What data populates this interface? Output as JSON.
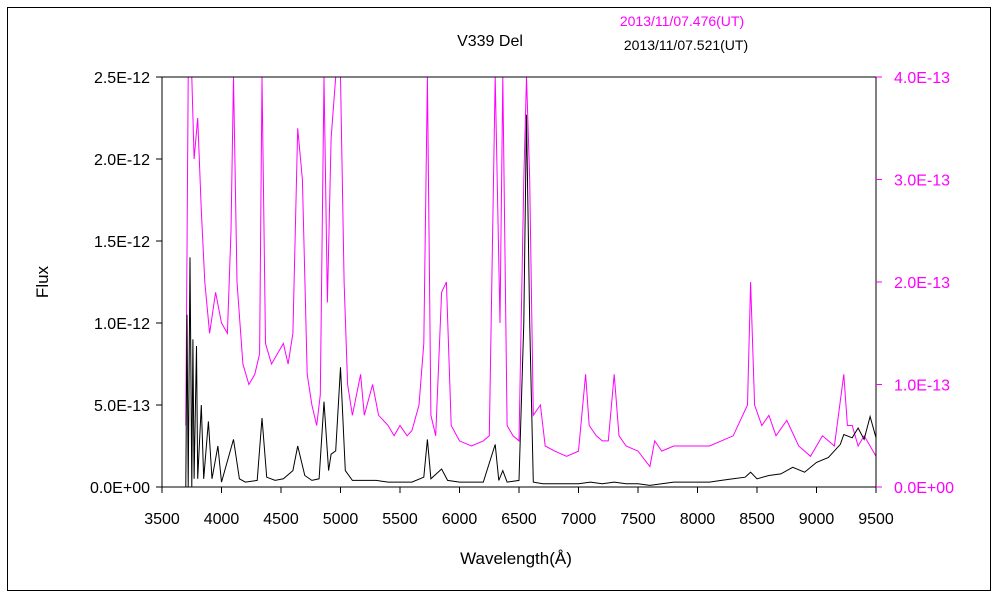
{
  "chart_data": {
    "type": "line",
    "title": "V339 Del",
    "xlabel": "Wavelength(Å)",
    "ylabel": "Flux",
    "xlim": [
      3500,
      9500
    ],
    "ylim_left": [
      0,
      2.5e-12
    ],
    "ylim_right": [
      0,
      4e-13
    ],
    "x_ticks": [
      "3500",
      "4000",
      "4500",
      "5000",
      "5500",
      "6000",
      "6500",
      "7000",
      "7500",
      "8000",
      "8500",
      "9000",
      "9500"
    ],
    "y_left_ticks": [
      "0.0E+00",
      "5.0E-13",
      "1.0E-12",
      "1.5E-12",
      "2.0E-12",
      "2.5E-12"
    ],
    "y_right_ticks": [
      "0.0E+00",
      "1.0E-13",
      "2.0E-13",
      "3.0E-13",
      "4.0E-13"
    ],
    "grid": false,
    "legend_position": "top-right",
    "colors": {
      "magenta": "#ff00ff",
      "black": "#000000"
    },
    "series": [
      {
        "name": "2013/11/07.476(UT)",
        "axis": "right",
        "color": "#ff00ff",
        "points": [
          [
            3700,
            6e-14
          ],
          [
            3720,
            4e-13
          ],
          [
            3750,
            4e-13
          ],
          [
            3770,
            3.2e-13
          ],
          [
            3800,
            3.6e-13
          ],
          [
            3830,
            2.7e-13
          ],
          [
            3860,
            2e-13
          ],
          [
            3900,
            1.5e-13
          ],
          [
            3950,
            1.9e-13
          ],
          [
            4000,
            1.6e-13
          ],
          [
            4050,
            1.5e-13
          ],
          [
            4080,
            2.5e-13
          ],
          [
            4101,
            4e-13
          ],
          [
            4130,
            2e-13
          ],
          [
            4180,
            1.2e-13
          ],
          [
            4230,
            1e-13
          ],
          [
            4280,
            1.1e-13
          ],
          [
            4320,
            1.3e-13
          ],
          [
            4340,
            4e-13
          ],
          [
            4370,
            1.4e-13
          ],
          [
            4420,
            1.2e-13
          ],
          [
            4470,
            1.3e-13
          ],
          [
            4520,
            1.4e-13
          ],
          [
            4560,
            1.2e-13
          ],
          [
            4600,
            1.5e-13
          ],
          [
            4640,
            3.5e-13
          ],
          [
            4680,
            3e-13
          ],
          [
            4720,
            1.1e-13
          ],
          [
            4760,
            8e-14
          ],
          [
            4800,
            6e-14
          ],
          [
            4830,
            9e-14
          ],
          [
            4861,
            4e-13
          ],
          [
            4890,
            1.8e-13
          ],
          [
            4921,
            3.4e-13
          ],
          [
            4960,
            4e-13
          ],
          [
            5000,
            4e-13
          ],
          [
            5030,
            2e-13
          ],
          [
            5060,
            1e-13
          ],
          [
            5100,
            7e-14
          ],
          [
            5169,
            1.1e-13
          ],
          [
            5200,
            7e-14
          ],
          [
            5270,
            1e-13
          ],
          [
            5320,
            7e-14
          ],
          [
            5400,
            6e-14
          ],
          [
            5450,
            5e-14
          ],
          [
            5500,
            6e-14
          ],
          [
            5560,
            5e-14
          ],
          [
            5600,
            5.5e-14
          ],
          [
            5660,
            8e-14
          ],
          [
            5700,
            1.4e-13
          ],
          [
            5730,
            4e-13
          ],
          [
            5760,
            7e-14
          ],
          [
            5800,
            5e-14
          ],
          [
            5850,
            1.9e-13
          ],
          [
            5890,
            2e-13
          ],
          [
            5930,
            6e-14
          ],
          [
            6000,
            4.5e-14
          ],
          [
            6100,
            4e-14
          ],
          [
            6200,
            4.5e-14
          ],
          [
            6250,
            5e-14
          ],
          [
            6300,
            4e-13
          ],
          [
            6340,
            1.6e-13
          ],
          [
            6364,
            4e-13
          ],
          [
            6400,
            6e-14
          ],
          [
            6450,
            5e-14
          ],
          [
            6500,
            4.5e-14
          ],
          [
            6540,
            3e-13
          ],
          [
            6563,
            4e-13
          ],
          [
            6590,
            3e-13
          ],
          [
            6620,
            7e-14
          ],
          [
            6680,
            8e-14
          ],
          [
            6720,
            4e-14
          ],
          [
            6800,
            3.5e-14
          ],
          [
            6900,
            3e-14
          ],
          [
            7000,
            3.5e-14
          ],
          [
            7060,
            1.1e-13
          ],
          [
            7090,
            6e-14
          ],
          [
            7150,
            5e-14
          ],
          [
            7200,
            4.5e-14
          ],
          [
            7250,
            4.5e-14
          ],
          [
            7300,
            1.1e-13
          ],
          [
            7340,
            5e-14
          ],
          [
            7400,
            4e-14
          ],
          [
            7500,
            3.5e-14
          ],
          [
            7600,
            2e-14
          ],
          [
            7640,
            4.5e-14
          ],
          [
            7700,
            3.5e-14
          ],
          [
            7800,
            4e-14
          ],
          [
            7900,
            4e-14
          ],
          [
            8000,
            4e-14
          ],
          [
            8100,
            4e-14
          ],
          [
            8200,
            4.5e-14
          ],
          [
            8300,
            5e-14
          ],
          [
            8360,
            6.5e-14
          ],
          [
            8420,
            8e-14
          ],
          [
            8446,
            2e-13
          ],
          [
            8480,
            8e-14
          ],
          [
            8540,
            6e-14
          ],
          [
            8600,
            7e-14
          ],
          [
            8660,
            5e-14
          ],
          [
            8750,
            6.5e-14
          ],
          [
            8850,
            4e-14
          ],
          [
            8950,
            3e-14
          ],
          [
            9050,
            5e-14
          ],
          [
            9150,
            4e-14
          ],
          [
            9229,
            1.1e-13
          ],
          [
            9260,
            6e-14
          ],
          [
            9300,
            6e-14
          ],
          [
            9350,
            4e-14
          ],
          [
            9400,
            5e-14
          ],
          [
            9450,
            4e-14
          ],
          [
            9500,
            3e-14
          ]
        ]
      },
      {
        "name": "2013/11/07.521(UT)",
        "axis": "left",
        "color": "#000000",
        "points": [
          [
            3700,
            0
          ],
          [
            3710,
            1.05e-12
          ],
          [
            3720,
            0
          ],
          [
            3735,
            1.4e-12
          ],
          [
            3750,
            0
          ],
          [
            3760,
            9e-13
          ],
          [
            3770,
            5e-14
          ],
          [
            3790,
            8.6e-13
          ],
          [
            3800,
            5e-14
          ],
          [
            3830,
            5e-13
          ],
          [
            3850,
            5e-14
          ],
          [
            3890,
            4e-13
          ],
          [
            3920,
            5e-14
          ],
          [
            3970,
            2.5e-13
          ],
          [
            4000,
            3e-14
          ],
          [
            4101,
            2.9e-13
          ],
          [
            4150,
            5e-14
          ],
          [
            4200,
            3e-14
          ],
          [
            4300,
            4e-14
          ],
          [
            4340,
            4.2e-13
          ],
          [
            4380,
            6e-14
          ],
          [
            4450,
            4e-14
          ],
          [
            4520,
            5e-14
          ],
          [
            4600,
            1e-13
          ],
          [
            4640,
            2.5e-13
          ],
          [
            4700,
            7e-14
          ],
          [
            4760,
            4e-14
          ],
          [
            4820,
            5e-14
          ],
          [
            4861,
            5.2e-13
          ],
          [
            4900,
            1e-13
          ],
          [
            4921,
            2e-13
          ],
          [
            4960,
            2.2e-13
          ],
          [
            5000,
            7.3e-13
          ],
          [
            5040,
            1e-13
          ],
          [
            5100,
            4e-14
          ],
          [
            5200,
            4e-14
          ],
          [
            5300,
            4e-14
          ],
          [
            5400,
            3e-14
          ],
          [
            5500,
            3e-14
          ],
          [
            5600,
            3e-14
          ],
          [
            5700,
            6e-14
          ],
          [
            5730,
            2.9e-13
          ],
          [
            5760,
            5e-14
          ],
          [
            5850,
            1.1e-13
          ],
          [
            5900,
            4e-14
          ],
          [
            6000,
            3e-14
          ],
          [
            6100,
            3e-14
          ],
          [
            6200,
            3e-14
          ],
          [
            6300,
            2.6e-13
          ],
          [
            6330,
            4e-14
          ],
          [
            6364,
            1e-13
          ],
          [
            6400,
            3e-14
          ],
          [
            6500,
            4e-14
          ],
          [
            6540,
            1e-12
          ],
          [
            6563,
            2.27e-12
          ],
          [
            6590,
            1e-12
          ],
          [
            6620,
            3e-14
          ],
          [
            6700,
            2e-14
          ],
          [
            6800,
            2e-14
          ],
          [
            6900,
            2e-14
          ],
          [
            7000,
            2e-14
          ],
          [
            7100,
            3e-14
          ],
          [
            7200,
            2e-14
          ],
          [
            7300,
            3e-14
          ],
          [
            7400,
            2e-14
          ],
          [
            7500,
            2e-14
          ],
          [
            7600,
            1e-14
          ],
          [
            7700,
            2e-14
          ],
          [
            7800,
            3e-14
          ],
          [
            7900,
            3e-14
          ],
          [
            8000,
            3e-14
          ],
          [
            8100,
            3e-14
          ],
          [
            8200,
            4e-14
          ],
          [
            8300,
            5e-14
          ],
          [
            8400,
            6e-14
          ],
          [
            8446,
            9e-14
          ],
          [
            8500,
            5e-14
          ],
          [
            8600,
            7e-14
          ],
          [
            8700,
            8e-14
          ],
          [
            8800,
            1.2e-13
          ],
          [
            8900,
            9e-14
          ],
          [
            9000,
            1.5e-13
          ],
          [
            9100,
            1.8e-13
          ],
          [
            9200,
            2.6e-13
          ],
          [
            9229,
            3.2e-13
          ],
          [
            9300,
            3e-13
          ],
          [
            9350,
            3.6e-13
          ],
          [
            9400,
            2.9e-13
          ],
          [
            9450,
            4.3e-13
          ],
          [
            9500,
            3e-13
          ]
        ]
      }
    ]
  }
}
